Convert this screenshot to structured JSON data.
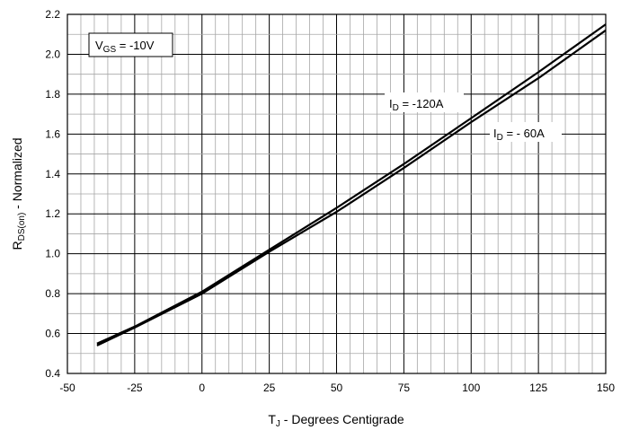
{
  "chart_data": {
    "type": "line",
    "title": "",
    "xlabel": {
      "prefix": "T",
      "sub": "J",
      "rest": " - Degrees Centigrade"
    },
    "ylabel": {
      "prefix": "R",
      "sub": "DS(on)",
      "rest": " - Normalized"
    },
    "xlim": [
      -50,
      150
    ],
    "ylim": [
      0.4,
      2.2
    ],
    "x_ticks": [
      "-50",
      "-25",
      "0",
      "25",
      "50",
      "75",
      "100",
      "125",
      "150"
    ],
    "y_ticks": [
      "0.4",
      "0.6",
      "0.8",
      "1.0",
      "1.2",
      "1.4",
      "1.6",
      "1.8",
      "2.0",
      "2.2"
    ],
    "grid": true,
    "annotations": {
      "vgs": {
        "prefix": "V",
        "sub": "GS",
        "rest": " = -10V"
      },
      "id120": {
        "prefix": "I",
        "sub": "D",
        "rest": " = -120A"
      },
      "id60": {
        "prefix": "I",
        "sub": "D",
        "rest": " = - 60A"
      }
    },
    "series": [
      {
        "label_ref": "id120",
        "x": [
          -39,
          -25,
          0,
          25,
          50,
          75,
          100,
          125,
          150
        ],
        "y": [
          0.55,
          0.635,
          0.81,
          1.02,
          1.23,
          1.45,
          1.68,
          1.91,
          2.15
        ]
      },
      {
        "label_ref": "id60",
        "x": [
          -39,
          -25,
          0,
          25,
          50,
          75,
          100,
          125,
          150
        ],
        "y": [
          0.54,
          0.63,
          0.8,
          1.01,
          1.21,
          1.43,
          1.66,
          1.88,
          2.12
        ]
      }
    ]
  }
}
